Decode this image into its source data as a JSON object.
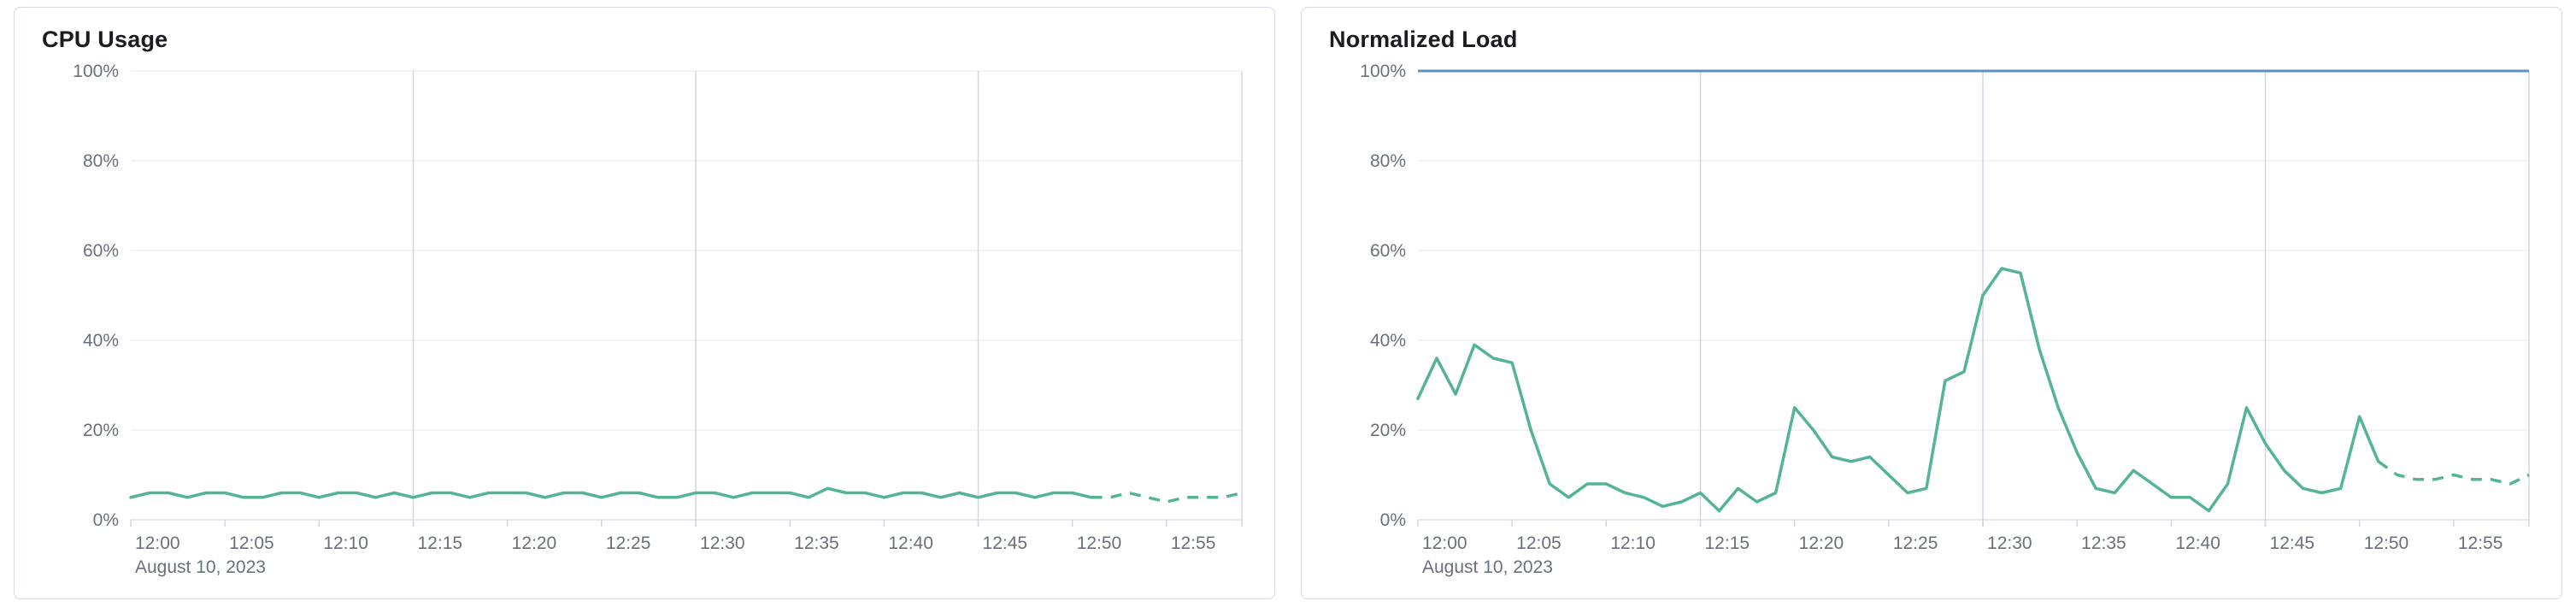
{
  "chart_data": [
    {
      "type": "line",
      "title": "CPU Usage",
      "x_axis_date": "August 10, 2023",
      "x_start": "12:00",
      "x_end": "12:59",
      "x_tick_labels": [
        "12:00",
        "12:05",
        "12:10",
        "12:15",
        "12:20",
        "12:25",
        "12:30",
        "12:35",
        "12:40",
        "12:45",
        "12:50",
        "12:55"
      ],
      "grid_vertical_at": [
        "12:15",
        "12:30",
        "12:45",
        "12:59"
      ],
      "y_tick_labels": [
        "0%",
        "20%",
        "40%",
        "60%",
        "80%",
        "100%"
      ],
      "ylim": [
        0,
        100
      ],
      "grid": true,
      "legend": false,
      "series": [
        {
          "name": "CPU Usage",
          "color": "#54b399",
          "interval_minutes": 1,
          "values": [
            5,
            6,
            6,
            5,
            6,
            6,
            5,
            5,
            6,
            6,
            5,
            6,
            6,
            5,
            6,
            5,
            6,
            6,
            5,
            6,
            6,
            6,
            5,
            6,
            6,
            5,
            6,
            6,
            5,
            5,
            6,
            6,
            5,
            6,
            6,
            6,
            5,
            7,
            6,
            6,
            5,
            6,
            6,
            5,
            6,
            5,
            6,
            6,
            5,
            6,
            6,
            5,
            5,
            6,
            5,
            4,
            5,
            5,
            5,
            6
          ],
          "dashed_from": "12:51"
        }
      ]
    },
    {
      "type": "line",
      "title": "Normalized Load",
      "x_axis_date": "August 10, 2023",
      "x_start": "12:00",
      "x_end": "12:59",
      "x_tick_labels": [
        "12:00",
        "12:05",
        "12:10",
        "12:15",
        "12:20",
        "12:25",
        "12:30",
        "12:35",
        "12:40",
        "12:45",
        "12:50",
        "12:55"
      ],
      "grid_vertical_at": [
        "12:15",
        "12:30",
        "12:45",
        "12:59"
      ],
      "y_tick_labels": [
        "0%",
        "20%",
        "40%",
        "60%",
        "80%",
        "100%"
      ],
      "ylim": [
        0,
        100
      ],
      "grid": true,
      "legend": false,
      "reference_line": {
        "value": 100,
        "color": "#6092c0"
      },
      "series": [
        {
          "name": "Normalized Load",
          "color": "#54b399",
          "interval_minutes": 1,
          "values": [
            27,
            36,
            28,
            39,
            36,
            35,
            20,
            8,
            5,
            8,
            8,
            6,
            5,
            3,
            4,
            6,
            2,
            7,
            4,
            6,
            25,
            20,
            14,
            13,
            14,
            10,
            6,
            7,
            31,
            33,
            50,
            56,
            55,
            38,
            25,
            15,
            7,
            6,
            11,
            8,
            5,
            5,
            2,
            8,
            25,
            17,
            11,
            7,
            6,
            7,
            23,
            13,
            10,
            9,
            9,
            10,
            9,
            9,
            8,
            10
          ],
          "dashed_from": "12:51"
        }
      ]
    }
  ],
  "colors": {
    "series_green": "#54b399",
    "reference_blue": "#6092c0"
  }
}
